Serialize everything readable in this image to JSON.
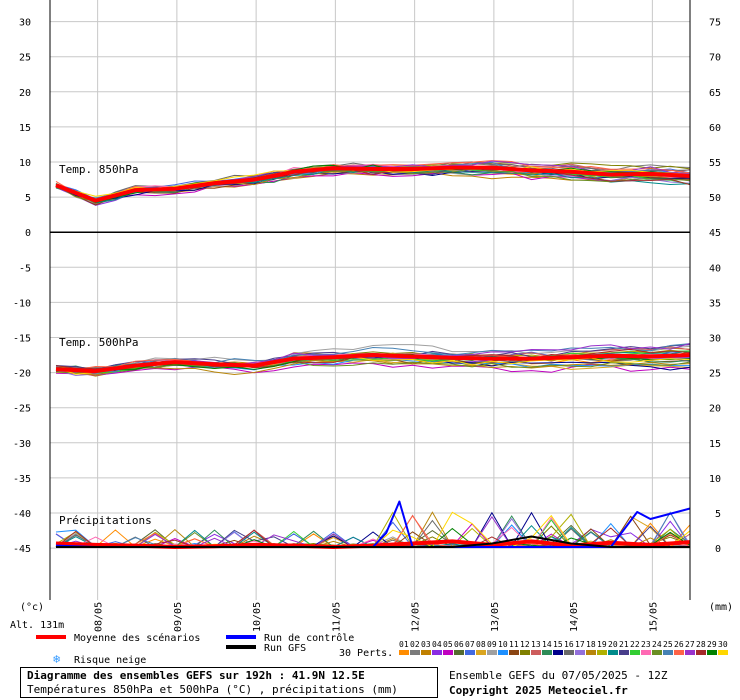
{
  "chart_data": {
    "type": "line",
    "title": "Diagramme des ensembles GEFS sur 192h : 41.9N 12.5E",
    "subtitle": "Températures 850hPa et 500hPa (°C) , précipitations (mm)",
    "left_axis_label": "(°c)",
    "right_axis_label": "(mm)",
    "altitude_label": "Alt. 131m",
    "left_ticks": [
      30,
      25,
      20,
      15,
      10,
      5,
      0,
      -5,
      -10,
      -15,
      -20,
      -25,
      -30,
      -35,
      -40,
      -45
    ],
    "right_ticks": [
      75,
      70,
      65,
      60,
      55,
      50,
      45,
      40,
      35,
      30,
      25,
      20,
      15,
      10,
      5,
      0
    ],
    "x_ticks": [
      "08/05",
      "09/05",
      "10/05",
      "11/05",
      "12/05",
      "13/05",
      "14/05",
      "15/05"
    ],
    "x_range_hours": [
      0,
      192
    ],
    "grid": true,
    "panel_labels": {
      "t850": "Temp. 850hPa",
      "t500": "Temp. 500hPa",
      "precip": "Précipitations"
    },
    "series": [
      {
        "name": "Moyenne des scénarios",
        "color": "#ff0000",
        "panel": "t850",
        "x": [
          0,
          12,
          24,
          36,
          48,
          60,
          72,
          84,
          96,
          108,
          120,
          132,
          144,
          156,
          168,
          180,
          192
        ],
        "values": [
          6.7,
          4.5,
          6.0,
          6.2,
          7.0,
          7.5,
          8.6,
          9.1,
          9.0,
          9.0,
          9.2,
          9.2,
          8.8,
          8.6,
          8.2,
          8.3,
          8.0
        ]
      },
      {
        "name": "Moyenne des scénarios",
        "color": "#ff0000",
        "panel": "t500",
        "x": [
          0,
          12,
          24,
          36,
          48,
          60,
          72,
          84,
          96,
          108,
          120,
          132,
          144,
          156,
          168,
          180,
          192
        ],
        "values": [
          -19.5,
          -19.8,
          -19.0,
          -18.5,
          -18.8,
          -19.0,
          -18.0,
          -17.8,
          -17.5,
          -17.7,
          -17.9,
          -18.0,
          -18.0,
          -17.8,
          -17.6,
          -17.7,
          -17.5
        ]
      },
      {
        "name": "Moyenne des scénarios",
        "color": "#ff0000",
        "panel": "precip",
        "x": [
          0,
          12,
          24,
          36,
          48,
          60,
          72,
          84,
          96,
          108,
          120,
          132,
          144,
          156,
          168,
          180,
          192
        ],
        "values": [
          0.5,
          0.3,
          0.2,
          0.0,
          0.1,
          0.3,
          0.2,
          0.0,
          0.2,
          0.5,
          0.8,
          0.3,
          0.8,
          0.2,
          0.6,
          0.3,
          0.7
        ]
      },
      {
        "name": "Run de contrôle",
        "color": "#0000ff",
        "panel": "precip",
        "x": [
          0,
          12,
          24,
          36,
          48,
          60,
          72,
          84,
          96,
          100,
          104,
          108,
          120,
          132,
          144,
          156,
          168,
          172,
          176,
          180,
          192
        ],
        "values": [
          0.2,
          0.0,
          0.0,
          0.0,
          0.0,
          0.0,
          0.0,
          0.0,
          0.0,
          2.0,
          6.5,
          0.0,
          0.0,
          0.0,
          0.0,
          0.0,
          0.0,
          2.5,
          5.0,
          4.0,
          5.5
        ]
      },
      {
        "name": "Run GFS",
        "color": "#000000",
        "panel": "precip",
        "x": [
          0,
          12,
          24,
          36,
          48,
          60,
          72,
          84,
          96,
          108,
          120,
          132,
          144,
          156,
          168,
          180,
          192
        ],
        "values": [
          0.0,
          0.0,
          0.0,
          0.0,
          0.0,
          0.0,
          0.0,
          0.0,
          0.0,
          0.0,
          0.0,
          0.5,
          1.5,
          0.5,
          0.0,
          0.0,
          0.0
        ]
      }
    ],
    "members_count_label": "30 Perts.",
    "member_labels": [
      "01",
      "02",
      "03",
      "04",
      "05",
      "06",
      "07",
      "08",
      "09",
      "10",
      "11",
      "12",
      "13",
      "14",
      "15",
      "16",
      "17",
      "18",
      "19",
      "20",
      "21",
      "22",
      "23",
      "24",
      "25",
      "26",
      "27",
      "28",
      "29",
      "30"
    ],
    "member_colors": [
      "#ff8c00",
      "#7b7b7b",
      "#c08000",
      "#8a2be2",
      "#c000c0",
      "#556b2f",
      "#4169e1",
      "#daa520",
      "#a0a0a0",
      "#1e90ff",
      "#8b4513",
      "#808000",
      "#cd5c5c",
      "#2e8b57",
      "#00008b",
      "#696969",
      "#9370db",
      "#b8860b",
      "#b0b000",
      "#008b8b",
      "#483d8b",
      "#32cd32",
      "#ff69b4",
      "#6b8e23",
      "#4682b4",
      "#ff6347",
      "#9932cc",
      "#a52a2a",
      "#008000",
      "#ffd700"
    ]
  },
  "legend": {
    "mean": "Moyenne des scénarios",
    "control": "Run de contrôle",
    "gfs": "Run GFS",
    "snow": "Risque neige",
    "snow_icon": "snowflake-icon"
  },
  "footer": {
    "title": "Diagramme des ensembles GEFS sur 192h : 41.9N 12.5E",
    "subtitle": "Températures 850hPa et 500hPa (°C) , précipitations (mm)",
    "run": "Ensemble GEFS du 07/05/2025 - 12Z",
    "copyright": "Copyright 2025 Meteociel.fr"
  }
}
